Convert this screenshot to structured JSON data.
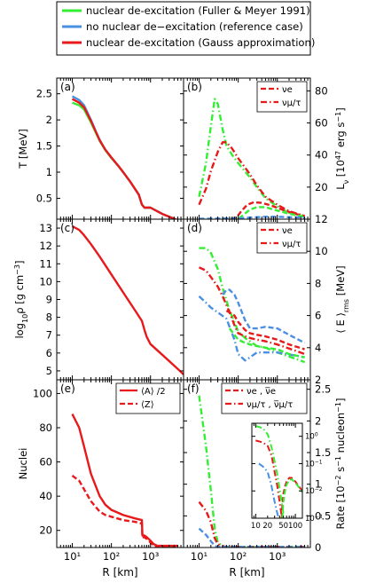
{
  "legend": {
    "entries": [
      {
        "label": "nuclear de-excitation (Fuller & Meyer 1991)",
        "color": "#33ee33"
      },
      {
        "label": "no nuclear de−excitation (reference case)",
        "color": "#4a90e2"
      },
      {
        "label": "nuclear de-excitation (Gauss approximation)",
        "color": "#e8191b"
      }
    ]
  },
  "x_axis": {
    "label": "R [km]",
    "ticks": [
      {
        "v": 10,
        "label": "10¹"
      },
      {
        "v": 100,
        "label": "10²"
      },
      {
        "v": 1000,
        "label": "10³"
      }
    ],
    "log": true
  },
  "chart_data": [
    {
      "id": "a",
      "type": "line",
      "panel_label": "(a)",
      "ylabel": "T [MeV]",
      "xlim": [
        4,
        7000
      ],
      "ylim": [
        0.1,
        2.8
      ],
      "xlog": true,
      "yticks": [
        0.5,
        1,
        1.5,
        2,
        2.5
      ],
      "series": [
        {
          "name": "nuclear de-excitation (Fuller & Meyer 1991)",
          "color": "#33ee33",
          "dash": "solid",
          "x": [
            10,
            15,
            20,
            30,
            40,
            50,
            70,
            100,
            150,
            200,
            300,
            500,
            600,
            700,
            1000,
            2000,
            5000
          ],
          "y": [
            2.33,
            2.28,
            2.2,
            1.95,
            1.75,
            1.6,
            1.42,
            1.27,
            1.12,
            1.0,
            0.82,
            0.57,
            0.38,
            0.32,
            0.32,
            0.2,
            0.08
          ]
        },
        {
          "name": "no nuclear de−excitation (reference case)",
          "color": "#4a90e2",
          "dash": "solid",
          "x": [
            10,
            15,
            20,
            30,
            40,
            50,
            70,
            100,
            150,
            200,
            300,
            500,
            600,
            700,
            1000,
            2000,
            5000
          ],
          "y": [
            2.45,
            2.38,
            2.28,
            2.0,
            1.78,
            1.62,
            1.43,
            1.28,
            1.12,
            1.0,
            0.82,
            0.57,
            0.38,
            0.32,
            0.32,
            0.2,
            0.08
          ]
        },
        {
          "name": "nuclear de-excitation (Gauss approximation)",
          "color": "#e8191b",
          "dash": "solid",
          "x": [
            10,
            15,
            20,
            30,
            40,
            50,
            70,
            100,
            150,
            200,
            300,
            500,
            600,
            700,
            1000,
            2000,
            5000
          ],
          "y": [
            2.4,
            2.33,
            2.24,
            1.98,
            1.77,
            1.61,
            1.43,
            1.28,
            1.12,
            1.0,
            0.82,
            0.57,
            0.38,
            0.32,
            0.32,
            0.2,
            0.08
          ]
        }
      ]
    },
    {
      "id": "b",
      "type": "line",
      "panel_label": "(b)",
      "ylabel_parts": [
        "L",
        "ν",
        " [10",
        "47",
        " erg s",
        "−1",
        "]"
      ],
      "xlim": [
        4,
        7000
      ],
      "ylim": [
        0,
        88
      ],
      "xlog": true,
      "yticks": [
        20,
        40,
        60,
        80
      ],
      "legend": [
        {
          "label": "νe",
          "dash": "dashed"
        },
        {
          "label": "νμ/τ",
          "dash": "dashdot"
        }
      ],
      "series": [
        {
          "name": "",
          "color": "#33ee33",
          "dash": "dashdot",
          "x": [
            10,
            15,
            20,
            25,
            30,
            40,
            50,
            70,
            100,
            200,
            300,
            500,
            1000,
            2000,
            5000
          ],
          "y": [
            14,
            35,
            58,
            75,
            72,
            56,
            46,
            40,
            35,
            26,
            20,
            13,
            8,
            4,
            2
          ]
        },
        {
          "name": "",
          "color": "#e8191b",
          "dash": "dashdot",
          "x": [
            10,
            15,
            20,
            30,
            40,
            50,
            70,
            100,
            200,
            300,
            500,
            1000,
            2000,
            5000
          ],
          "y": [
            9,
            19,
            30,
            42,
            48,
            48,
            44,
            38,
            28,
            21,
            14,
            9,
            5,
            2
          ]
        },
        {
          "name": "",
          "color": "#e8191b",
          "dash": "dashed",
          "x": [
            10,
            60,
            90,
            120,
            170,
            250,
            400,
            700,
            1500,
            3000,
            5000
          ],
          "y": [
            0,
            0,
            1,
            5,
            9,
            10.5,
            10.2,
            8.5,
            5.5,
            3.2,
            2
          ]
        },
        {
          "name": "",
          "color": "#33ee33",
          "dash": "dashed",
          "x": [
            10,
            100,
            140,
            200,
            300,
            500,
            800,
            1500,
            3000,
            5000
          ],
          "y": [
            0,
            0,
            3,
            6,
            7.5,
            7.5,
            6,
            4.2,
            2.5,
            1.5
          ]
        },
        {
          "name": "",
          "color": "#4a90e2",
          "dash": "dashed",
          "x": [
            10,
            100,
            200,
            500,
            1000,
            2000,
            5000
          ],
          "y": [
            0.3,
            0.5,
            1,
            1.5,
            1.5,
            1.2,
            1
          ]
        }
      ]
    },
    {
      "id": "c",
      "type": "line",
      "panel_label": "(c)",
      "ylabel_parts": [
        "log",
        "10",
        "ρ [g cm",
        "−3",
        "]"
      ],
      "xlim": [
        4,
        7000
      ],
      "ylim": [
        4.5,
        13.5
      ],
      "xlog": true,
      "yticks": [
        5,
        6,
        7,
        8,
        9,
        10,
        11,
        12,
        13
      ],
      "series": [
        {
          "name": "nuclear de-excitation (Gauss approximation)",
          "color": "#e8191b",
          "dash": "solid",
          "x": [
            10,
            15,
            20,
            30,
            50,
            100,
            200,
            400,
            600,
            700,
            800,
            1000,
            2000,
            5000,
            7000
          ],
          "y": [
            13.1,
            12.9,
            12.6,
            12.1,
            11.4,
            10.4,
            9.4,
            8.4,
            7.8,
            7.3,
            6.9,
            6.5,
            5.9,
            5.1,
            4.8
          ]
        }
      ]
    },
    {
      "id": "d",
      "type": "line",
      "panel_label": "(d)",
      "ylabel_parts": [
        "⟨ E ⟩",
        "rms",
        " [MeV]"
      ],
      "xlim": [
        4,
        7000
      ],
      "ylim": [
        2,
        12
      ],
      "xlog": true,
      "yticks": [
        2,
        4,
        6,
        8,
        10,
        12
      ],
      "legend": [
        {
          "label": "νe",
          "dash": "dashed"
        },
        {
          "label": "νμ/τ",
          "dash": "dashdot"
        }
      ],
      "series": [
        {
          "name": "",
          "color": "#33ee33",
          "dash": "dashdot",
          "x": [
            10,
            15,
            20,
            30,
            40,
            60,
            80,
            100,
            150,
            200,
            300,
            500,
            1000,
            3000,
            5000
          ],
          "y": [
            10.2,
            10.2,
            9.9,
            8.9,
            7.7,
            6.3,
            5.6,
            5.0,
            4.6,
            4.4,
            4.1,
            4.0,
            3.7,
            3.3,
            3.1
          ]
        },
        {
          "name": "",
          "color": "#e8191b",
          "dash": "dashdot",
          "x": [
            10,
            15,
            20,
            30,
            40,
            60,
            80,
            100,
            150,
            200,
            300,
            500,
            1000,
            3000,
            5000
          ],
          "y": [
            9.0,
            8.8,
            8.4,
            7.8,
            7.2,
            6.2,
            5.4,
            4.9,
            4.7,
            4.6,
            4.5,
            4.4,
            4.2,
            3.8,
            3.6
          ]
        },
        {
          "name": "",
          "color": "#4a90e2",
          "dash": "dashdot",
          "x": [
            10,
            15,
            20,
            30,
            50,
            80,
            100,
            150,
            200,
            300,
            500,
            1000,
            3000,
            5000
          ],
          "y": [
            7.2,
            6.8,
            6.5,
            6.2,
            5.8,
            4.5,
            3.6,
            3.2,
            3.4,
            3.7,
            3.7,
            3.7,
            3.5,
            3.4
          ]
        },
        {
          "name": "",
          "color": "#4a90e2",
          "dash": "dashed",
          "x": [
            40,
            50,
            60,
            80,
            100,
            150,
            200,
            300,
            500,
            1000,
            2000,
            5000
          ],
          "y": [
            7.3,
            7.6,
            7.6,
            7.3,
            6.8,
            5.7,
            5.2,
            5.2,
            5.3,
            5.2,
            4.8,
            4.3
          ]
        },
        {
          "name": "",
          "color": "#e8191b",
          "dash": "dashed",
          "x": [
            50,
            60,
            80,
            100,
            150,
            200,
            300,
            500,
            1000,
            2000,
            5000
          ],
          "y": [
            6.3,
            6.2,
            6.0,
            5.6,
            5.1,
            4.9,
            4.8,
            4.7,
            4.5,
            4.2,
            3.9
          ]
        },
        {
          "name": "",
          "color": "#33ee33",
          "dash": "dashed",
          "x": [
            60,
            80,
            100,
            150,
            200,
            300,
            500,
            1000,
            2000,
            5000
          ],
          "y": [
            5.2,
            4.8,
            4.5,
            4.3,
            4.2,
            4.1,
            4.0,
            3.9,
            3.6,
            3.4
          ]
        }
      ]
    },
    {
      "id": "e",
      "type": "line",
      "panel_label": "(e)",
      "ylabel": "Nuclei",
      "xlim": [
        4,
        7000
      ],
      "ylim": [
        10,
        108
      ],
      "xlog": true,
      "yticks": [
        20,
        40,
        60,
        80,
        100
      ],
      "legend": [
        {
          "label": "⟨A⟩ /2",
          "dash": "solid"
        },
        {
          "label": "⟨Z⟩",
          "dash": "dashed"
        }
      ],
      "series": [
        {
          "name": "⟨A⟩ /2",
          "color": "#e8191b",
          "dash": "solid",
          "x": [
            10,
            15,
            20,
            30,
            50,
            70,
            100,
            200,
            400,
            600,
            620,
            700,
            800,
            1000,
            1200,
            1500,
            2000,
            5000
          ],
          "y": [
            88,
            80,
            69,
            53,
            40,
            35,
            32,
            29,
            27,
            26,
            17,
            17,
            16,
            14,
            12,
            11,
            11,
            11
          ]
        },
        {
          "name": "⟨Z⟩",
          "color": "#e8191b",
          "dash": "dashed",
          "x": [
            10,
            15,
            20,
            30,
            50,
            70,
            100,
            200,
            400,
            600,
            620,
            700,
            800,
            1000,
            1200,
            1500,
            2000,
            5000
          ],
          "y": [
            52,
            49,
            44,
            37,
            31,
            29,
            28,
            26,
            25,
            24,
            16,
            16,
            15,
            13,
            11,
            10,
            10,
            10
          ]
        }
      ]
    },
    {
      "id": "f",
      "type": "line",
      "panel_label": "(f)",
      "ylabel_parts": [
        "Rate [10",
        "−2",
        " s",
        "−1",
        " nucleon",
        "−1",
        "]"
      ],
      "xlim": [
        4,
        7000
      ],
      "ylim": [
        0,
        2.65
      ],
      "xlog": true,
      "yticks": [
        0,
        0.5,
        1,
        1.5,
        2,
        2.5
      ],
      "legend": [
        {
          "label": "νe , ν̅e",
          "dash": "dashed"
        },
        {
          "label": "νμ/τ , ν̅μ/τ",
          "dash": "dashdot"
        }
      ],
      "series": [
        {
          "name": "",
          "color": "#33ee33",
          "dash": "dashdot",
          "x": [
            10,
            15,
            20,
            25,
            30,
            40,
            50,
            100,
            1000,
            5000
          ],
          "y": [
            2.4,
            1.6,
            0.9,
            0.3,
            0.08,
            0.02,
            0.01,
            0.01,
            0.01,
            0.01
          ]
        },
        {
          "name": "",
          "color": "#e8191b",
          "dash": "dashdot",
          "x": [
            10,
            15,
            20,
            25,
            30,
            40,
            50,
            100,
            1000,
            5000
          ],
          "y": [
            0.72,
            0.58,
            0.4,
            0.15,
            0.05,
            0.02,
            0.01,
            0.01,
            0.01,
            0.01
          ]
        },
        {
          "name": "",
          "color": "#4a90e2",
          "dash": "dashed",
          "x": [
            10,
            15,
            20,
            25,
            30,
            40,
            50,
            100,
            1000,
            5000
          ],
          "y": [
            0.3,
            0.2,
            0.1,
            0.03,
            0.01,
            0.01,
            0.01,
            0.01,
            0.01,
            0.01
          ]
        }
      ]
    },
    {
      "id": "f-inset",
      "type": "line",
      "xlim": [
        8,
        150
      ],
      "ylim": [
        0.001,
        3
      ],
      "xlog": true,
      "ylog": true,
      "xticks": [
        10,
        20,
        50,
        100
      ],
      "xticklabels": [
        "10",
        "20",
        "50",
        "100"
      ],
      "yticks": [
        0.001,
        0.01,
        0.1,
        1
      ],
      "yticklabels": [
        [
          "10",
          "−3"
        ],
        [
          "10",
          "−2"
        ],
        [
          "10",
          "−1"
        ],
        [
          "10",
          "0"
        ]
      ],
      "series": [
        {
          "name": "",
          "color": "#33ee33",
          "dash": "dashdot",
          "x": [
            10,
            15,
            20,
            25,
            30,
            35,
            40,
            45,
            50
          ],
          "y": [
            2.4,
            2.0,
            1.2,
            0.4,
            0.12,
            0.04,
            0.012,
            0.004,
            0.0015
          ]
        },
        {
          "name": "",
          "color": "#e8191b",
          "dash": "dashdot",
          "x": [
            10,
            15,
            20,
            25,
            30,
            35,
            40,
            45
          ],
          "y": [
            0.7,
            0.6,
            0.45,
            0.2,
            0.05,
            0.015,
            0.004,
            0.0012
          ]
        },
        {
          "name": "",
          "color": "#4a90e2",
          "dash": "dashdot",
          "x": [
            12,
            15,
            20,
            25,
            30,
            35,
            40
          ],
          "y": [
            0.1,
            0.08,
            0.05,
            0.015,
            0.004,
            0.0015,
            0.0008
          ]
        },
        {
          "name": "",
          "color": "#e8191b",
          "dash": "dashed",
          "x": [
            45,
            47,
            50,
            55,
            60,
            70,
            80,
            100,
            120,
            150
          ],
          "y": [
            0.001,
            0.003,
            0.008,
            0.015,
            0.022,
            0.03,
            0.03,
            0.022,
            0.015,
            0.01
          ]
        },
        {
          "name": "",
          "color": "#33ee33",
          "dash": "dashed",
          "x": [
            47,
            50,
            55,
            60,
            70,
            80,
            100,
            120,
            150
          ],
          "y": [
            0.001,
            0.004,
            0.01,
            0.017,
            0.025,
            0.027,
            0.02,
            0.014,
            0.009
          ]
        }
      ]
    }
  ]
}
